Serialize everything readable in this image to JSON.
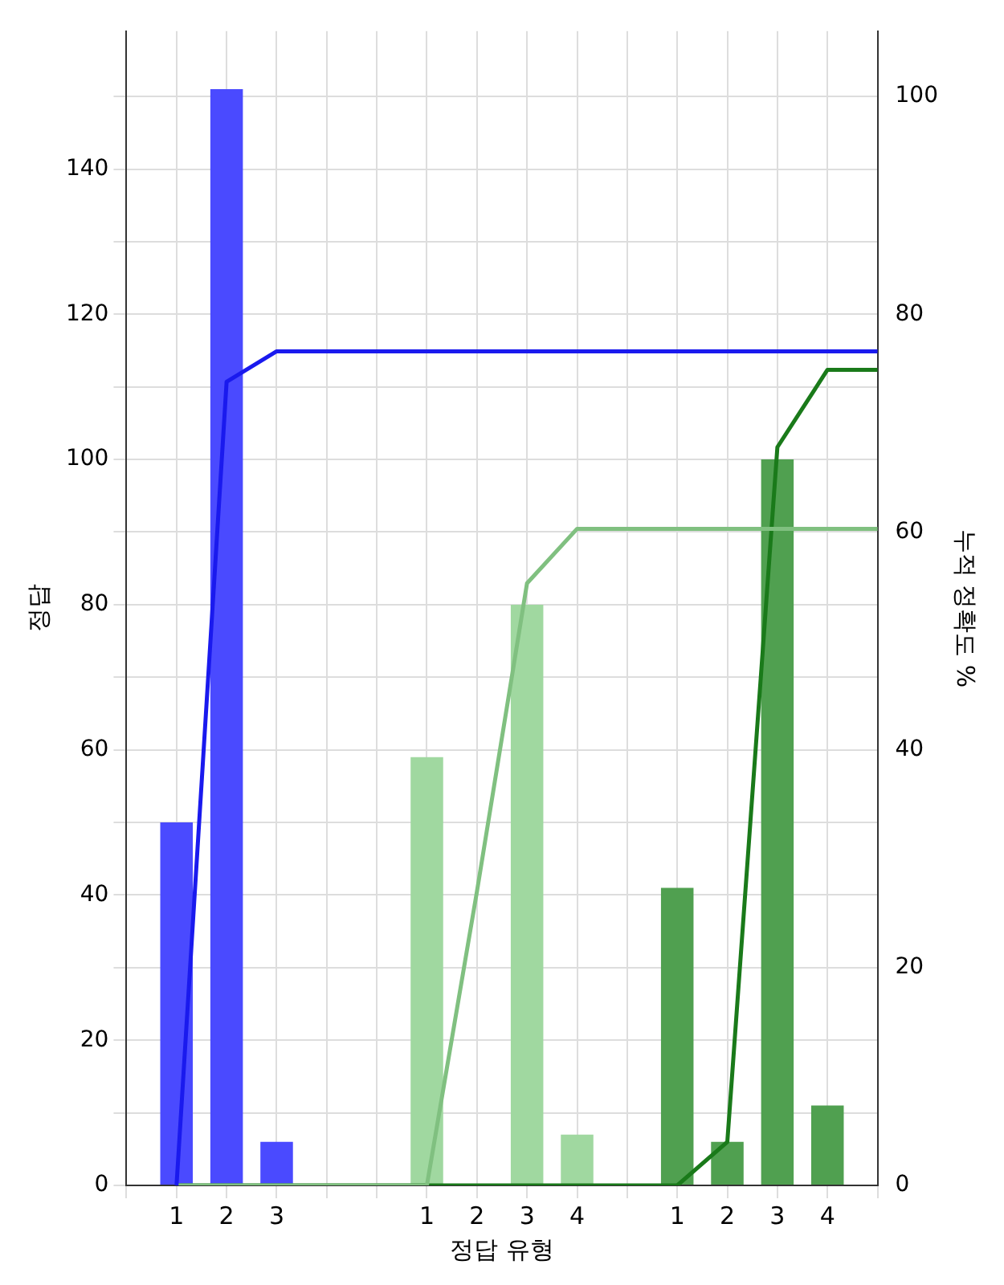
{
  "chart_data": {
    "type": "bar",
    "xlabel": "정답 유형",
    "ylabel": "정답",
    "y2label": "누적 정확도 %",
    "categories": [
      null,
      "1",
      "2",
      "3",
      null,
      null,
      "1",
      "2",
      "3",
      "4",
      null,
      "1",
      "2",
      "3",
      "4",
      null
    ],
    "series": [
      {
        "color": "#4a4aff",
        "values": [
          null,
          50,
          151,
          6,
          null,
          null,
          null,
          null,
          null,
          null,
          null,
          null,
          null,
          null,
          null,
          null
        ]
      },
      {
        "color": "#a0d8a0",
        "values": [
          null,
          null,
          null,
          null,
          null,
          null,
          59,
          0,
          80,
          7,
          null,
          null,
          null,
          null,
          null,
          null
        ]
      },
      {
        "color": "#50a050",
        "values": [
          null,
          null,
          null,
          null,
          null,
          null,
          null,
          null,
          null,
          null,
          null,
          41,
          6,
          100,
          11,
          null
        ]
      },
      {
        "type": "line",
        "axis": "y2",
        "color": "#1a1aee",
        "values": [
          null,
          0,
          73.8,
          76.6,
          76.6,
          76.6,
          76.6,
          76.6,
          76.6,
          76.6,
          76.6,
          76.6,
          76.6,
          76.6,
          76.6,
          76.6
        ]
      },
      {
        "type": "line",
        "axis": "y2",
        "color": "#80c080",
        "values": [
          null,
          0,
          0,
          0,
          0,
          0,
          0,
          27,
          55.3,
          60.3,
          60.3,
          60.3,
          60.3,
          60.3,
          60.3,
          60.3
        ]
      },
      {
        "type": "line",
        "axis": "y2",
        "color": "#1a7a1a",
        "values": [
          null,
          0,
          0,
          0,
          0,
          0,
          0,
          0,
          0,
          0,
          0,
          0,
          4,
          67.8,
          74.9,
          74.9
        ]
      }
    ],
    "ylim": [
      0,
      159
    ],
    "yticks": [
      0,
      {
        "value": 10,
        "label": null
      },
      20,
      {
        "value": 30,
        "label": null
      },
      40,
      {
        "value": 50,
        "label": null
      },
      60,
      {
        "value": 70,
        "label": null
      },
      80,
      {
        "value": 90,
        "label": null
      },
      100,
      {
        "value": 110,
        "label": null
      },
      120,
      {
        "value": 130,
        "label": null
      },
      140,
      {
        "value": 150,
        "label": null
      }
    ],
    "y2lim": [
      0,
      106
    ],
    "y2ticks": [
      0,
      20,
      40,
      60,
      80,
      100
    ],
    "grid": true,
    "legend": false
  }
}
